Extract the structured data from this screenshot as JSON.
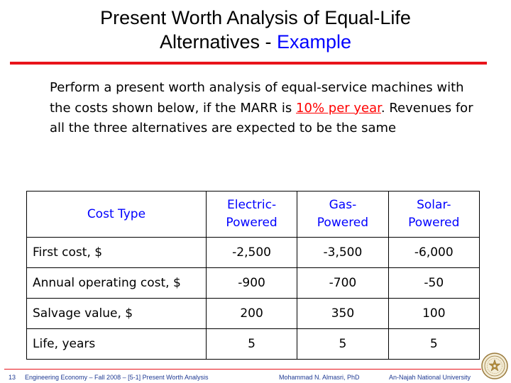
{
  "header": {
    "title_line1": "Present Worth Analysis of Equal-Life",
    "title_line2": "Alternatives - ",
    "title_accent": "Example"
  },
  "intro": {
    "text_before": "Perform a present worth analysis of equal-service machines with the costs shown below, if the MARR is ",
    "marr": "10% per year",
    "text_after": ". Revenues for all the three alternatives are expected to be the same"
  },
  "table": {
    "headers": [
      {
        "line1": "Cost Type",
        "line2": ""
      },
      {
        "line1": "Electric-",
        "line2": "Powered"
      },
      {
        "line1": "Gas-",
        "line2": "Powered"
      },
      {
        "line1": "Solar-",
        "line2": "Powered"
      }
    ],
    "rows": [
      {
        "label": "First cost, $",
        "electric": "-2,500",
        "gas": "-3,500",
        "solar": "-6,000"
      },
      {
        "label": "Annual operating cost, $",
        "electric": "-900",
        "gas": "-700",
        "solar": "-50"
      },
      {
        "label": "Salvage value, $",
        "electric": "200",
        "gas": "350",
        "solar": "100"
      },
      {
        "label": "Life, years",
        "electric": "5",
        "gas": "5",
        "solar": "5"
      }
    ]
  },
  "footer": {
    "slide_number": "13",
    "course": "Engineering Economy – Fall 2008 – [5-1] Present Worth Analysis",
    "author": "Mohammad N. Almasri, PhD",
    "university": "An-Najah National University"
  },
  "colors": {
    "accent_blue": "#0000ff",
    "accent_red": "#e8141b",
    "footer_text": "#1f3a93"
  },
  "icons": {
    "seal": "university-seal-icon"
  }
}
